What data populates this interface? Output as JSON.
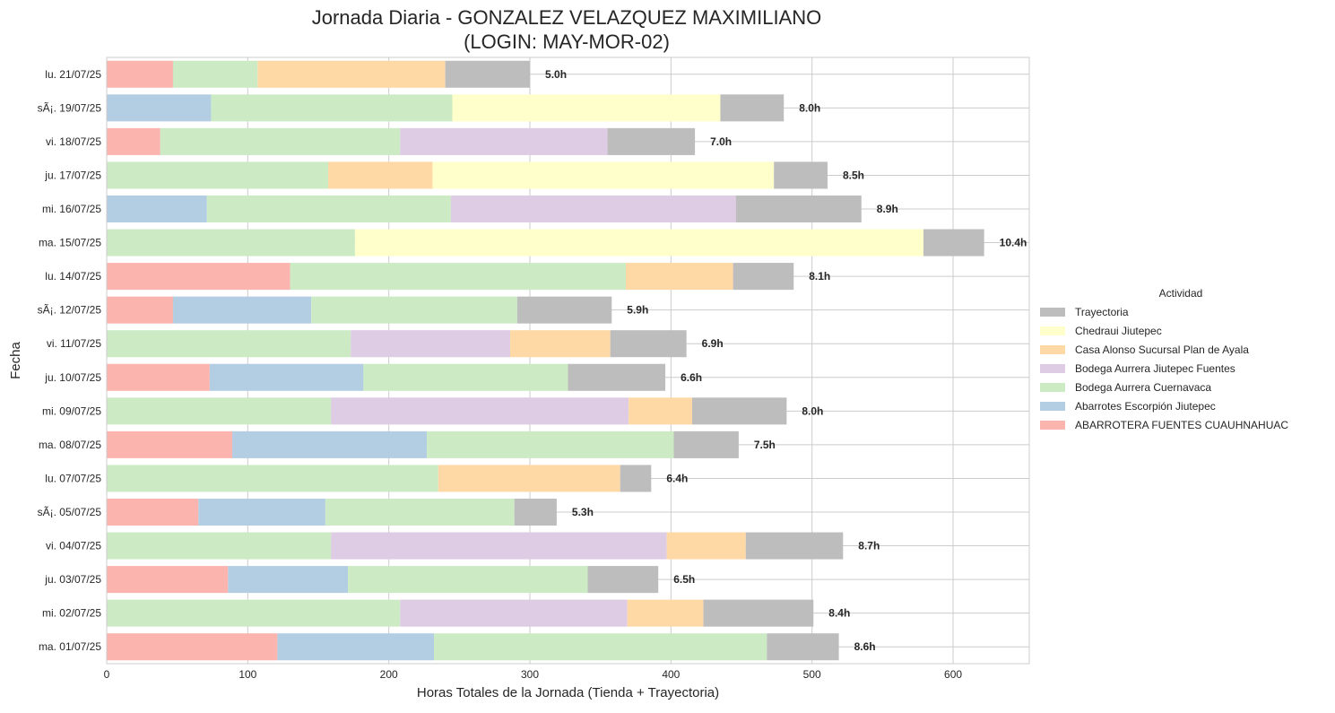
{
  "chart_data": {
    "type": "bar",
    "orientation": "horizontal",
    "stacked": true,
    "title": "Jornada Diaria - GONZALEZ VELAZQUEZ MAXIMILIANO\n(LOGIN: MAY-MOR-02)",
    "xlabel": "Horas Totales de la Jornada (Tienda + Trayectoria)",
    "ylabel": "Fecha",
    "xlim": [
      0,
      654
    ],
    "xticks": [
      0,
      100,
      200,
      300,
      400,
      500,
      600
    ],
    "grid": true,
    "legend": {
      "title": "Actividad",
      "placement": "center-right"
    },
    "categories": [
      "lu. 21/07/25",
      "sÃ¡. 19/07/25",
      "vi. 18/07/25",
      "ju. 17/07/25",
      "mi. 16/07/25",
      "ma. 15/07/25",
      "lu. 14/07/25",
      "sÃ¡. 12/07/25",
      "vi. 11/07/25",
      "ju. 10/07/25",
      "mi. 09/07/25",
      "ma. 08/07/25",
      "lu. 07/07/25",
      "sÃ¡. 05/07/25",
      "vi. 04/07/25",
      "ju. 03/07/25",
      "mi. 02/07/25",
      "ma. 01/07/25"
    ],
    "series": [
      {
        "name": "ABARROTERA FUENTES CUAUHNAHUAC",
        "color": "#fbb4ae",
        "values": [
          47,
          0,
          38,
          0,
          0,
          0,
          130,
          47,
          0,
          73,
          0,
          89,
          0,
          65,
          0,
          86,
          0,
          121
        ]
      },
      {
        "name": "Abarrotes Escorpión Jiutepec",
        "color": "#b3cde3",
        "values": [
          0,
          74,
          0,
          0,
          71,
          0,
          0,
          98,
          0,
          109,
          0,
          138,
          0,
          90,
          0,
          85,
          0,
          111
        ]
      },
      {
        "name": "Bodega Aurrera Cuernavaca",
        "color": "#ccebc5",
        "values": [
          60,
          171,
          170,
          157,
          173,
          176,
          238,
          146,
          173,
          145,
          159,
          175,
          235,
          134,
          159,
          170,
          208,
          236
        ]
      },
      {
        "name": "Bodega Aurrera Jiutepec Fuentes",
        "color": "#decbe4",
        "values": [
          0,
          0,
          147,
          0,
          202,
          0,
          0,
          0,
          113,
          0,
          211,
          0,
          0,
          0,
          238,
          0,
          161,
          0
        ]
      },
      {
        "name": "Casa Alonso Sucursal Plan de Ayala",
        "color": "#fed9a6",
        "values": [
          133,
          0,
          0,
          74,
          0,
          0,
          76,
          0,
          71,
          0,
          45,
          0,
          129,
          0,
          56,
          0,
          54,
          0
        ]
      },
      {
        "name": "Chedraui Jiutepec",
        "color": "#ffffcc",
        "values": [
          0,
          190,
          0,
          242,
          0,
          403,
          0,
          0,
          0,
          0,
          0,
          0,
          0,
          0,
          0,
          0,
          0,
          0
        ]
      },
      {
        "name": "Trayectoria",
        "color": "#bdbdbd",
        "values": [
          60,
          45,
          62,
          38,
          89,
          43,
          43,
          67,
          54,
          69,
          67,
          46,
          22,
          30,
          69,
          50,
          78,
          51
        ]
      }
    ],
    "totals_labels": [
      "5.0h",
      "8.0h",
      "7.0h",
      "8.5h",
      "8.9h",
      "10.4h",
      "8.1h",
      "5.9h",
      "6.9h",
      "6.6h",
      "8.0h",
      "7.5h",
      "6.4h",
      "5.3h",
      "8.7h",
      "6.5h",
      "8.4h",
      "8.6h"
    ],
    "legend_order": [
      "Trayectoria",
      "Chedraui Jiutepec",
      "Casa Alonso Sucursal Plan de Ayala",
      "Bodega Aurrera Jiutepec Fuentes",
      "Bodega Aurrera Cuernavaca",
      "Abarrotes Escorpión Jiutepec",
      "ABARROTERA FUENTES CUAUHNAHUAC"
    ],
    "colors": {
      "grid": "#cccccc",
      "axis": "#cccccc",
      "text": "#262626"
    }
  }
}
